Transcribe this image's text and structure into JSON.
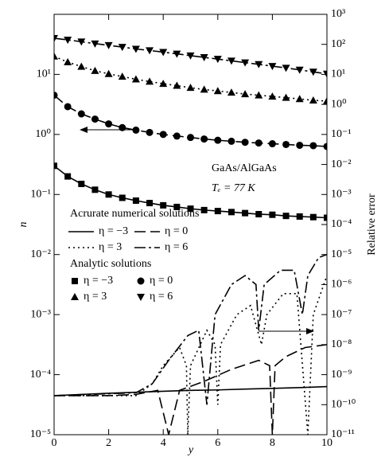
{
  "chart_data": {
    "type": "line",
    "xlabel": "y",
    "ylabel": "n",
    "y2label": "Relative error",
    "annotations": [
      "GaAs/AlGaAs",
      "Tₑ = 77 K"
    ],
    "legend_titles": [
      "Acrurate numerical solutions",
      "Analytic solutions"
    ],
    "xlim": [
      0,
      10
    ],
    "xticks": [
      0,
      2,
      4,
      6,
      8,
      10
    ],
    "log_y": true,
    "ylim": [
      1e-05,
      100
    ],
    "yticks": [
      {
        "value": 1e-05,
        "label": "10⁻⁵"
      },
      {
        "value": 0.0001,
        "label": "10⁻⁴"
      },
      {
        "value": 0.001,
        "label": "10⁻³"
      },
      {
        "value": 0.01,
        "label": "10⁻²"
      },
      {
        "value": 0.1,
        "label": "10⁻¹"
      },
      {
        "value": 1,
        "label": "10⁰"
      },
      {
        "value": 10,
        "label": "10¹"
      }
    ],
    "log_y2": true,
    "y2lim": [
      1e-11,
      1000
    ],
    "y2ticks": [
      {
        "value": 1e-11,
        "label": "10⁻¹¹"
      },
      {
        "value": 1e-10,
        "label": "10⁻¹⁰"
      },
      {
        "value": 1e-09,
        "label": "10⁻⁹"
      },
      {
        "value": 1e-08,
        "label": "10⁻⁸"
      },
      {
        "value": 1e-07,
        "label": "10⁻⁷"
      },
      {
        "value": 1e-06,
        "label": "10⁻⁶"
      },
      {
        "value": 1e-05,
        "label": "10⁻⁵"
      },
      {
        "value": 0.0001,
        "label": "10⁻⁴"
      },
      {
        "value": 0.001,
        "label": "10⁻³"
      },
      {
        "value": 0.01,
        "label": "10⁻²"
      },
      {
        "value": 0.1,
        "label": "10⁻¹"
      },
      {
        "value": 1,
        "label": "10⁰"
      },
      {
        "value": 10,
        "label": "10¹"
      },
      {
        "value": 100,
        "label": "10²"
      },
      {
        "value": 1000,
        "label": "10³"
      }
    ],
    "x": [
      0,
      0.5,
      1,
      1.5,
      2,
      2.5,
      3,
      3.5,
      4,
      4.5,
      5,
      5.5,
      6,
      6.5,
      7,
      7.5,
      8,
      8.5,
      9,
      9.5,
      10
    ],
    "series": [
      {
        "name": "η = −3",
        "kind": "line",
        "dash": "none",
        "color": "#000",
        "values": [
          0.3,
          0.2,
          0.15,
          0.12,
          0.1,
          0.088,
          0.079,
          0.072,
          0.066,
          0.062,
          0.058,
          0.055,
          0.053,
          0.051,
          0.049,
          0.047,
          0.046,
          0.044,
          0.043,
          0.042,
          0.041
        ]
      },
      {
        "name": "η = 0",
        "kind": "line",
        "dash": "14 6",
        "color": "#000",
        "values": [
          4.5,
          2.9,
          2.2,
          1.8,
          1.5,
          1.3,
          1.18,
          1.08,
          1.0,
          0.94,
          0.89,
          0.84,
          0.8,
          0.77,
          0.74,
          0.72,
          0.7,
          0.68,
          0.66,
          0.65,
          0.63
        ]
      },
      {
        "name": "η = 3",
        "kind": "line",
        "dash": "2 4",
        "color": "#000",
        "values": [
          20,
          16,
          13.5,
          11.5,
          10.2,
          9.2,
          8.3,
          7.6,
          7.0,
          6.5,
          6.0,
          5.6,
          5.3,
          5.0,
          4.7,
          4.5,
          4.3,
          4.1,
          3.9,
          3.7,
          3.6
        ]
      },
      {
        "name": "η = 6",
        "kind": "line",
        "dash": "14 4 3 4",
        "color": "#000",
        "values": [
          40,
          37.5,
          35,
          32.5,
          30.5,
          28.5,
          26.5,
          25,
          23.5,
          22,
          20.5,
          19.2,
          18,
          16.8,
          15.7,
          14.7,
          13.7,
          12.8,
          11.9,
          11,
          10.2
        ]
      },
      {
        "name": "η = −3",
        "kind": "marker",
        "marker": "square",
        "color": "#000",
        "values": [
          0.3,
          0.2,
          0.15,
          0.12,
          0.1,
          0.088,
          0.079,
          0.072,
          0.066,
          0.062,
          0.058,
          0.055,
          0.053,
          0.051,
          0.049,
          0.047,
          0.046,
          0.044,
          0.043,
          0.042,
          0.041
        ]
      },
      {
        "name": "η = 0",
        "kind": "marker",
        "marker": "circle",
        "color": "#000",
        "values": [
          4.5,
          2.9,
          2.2,
          1.8,
          1.5,
          1.3,
          1.18,
          1.08,
          1.0,
          0.94,
          0.89,
          0.84,
          0.8,
          0.77,
          0.74,
          0.72,
          0.7,
          0.68,
          0.66,
          0.65,
          0.63
        ]
      },
      {
        "name": "η = 3",
        "kind": "marker",
        "marker": "triangle-up",
        "color": "#000",
        "values": [
          20,
          16,
          13.5,
          11.5,
          10.2,
          9.2,
          8.3,
          7.6,
          7.0,
          6.5,
          6.0,
          5.6,
          5.3,
          5.0,
          4.7,
          4.5,
          4.3,
          4.1,
          3.9,
          3.7,
          3.6
        ]
      },
      {
        "name": "η = 6",
        "kind": "marker",
        "marker": "triangle-down",
        "color": "#000",
        "values": [
          40,
          37.5,
          35,
          32.5,
          30.5,
          28.5,
          26.5,
          25,
          23.5,
          22,
          20.5,
          19.2,
          18,
          16.8,
          15.7,
          14.7,
          13.7,
          12.8,
          11.9,
          11,
          10.2
        ]
      },
      {
        "kind": "line",
        "axis": "y2",
        "dash": "none",
        "color": "#000",
        "x": [
          0,
          1,
          2,
          3,
          4,
          5,
          6,
          7,
          8,
          9,
          10
        ],
        "values": [
          2e-10,
          2.2e-10,
          2.4e-10,
          2.6e-10,
          2.8e-10,
          3e-10,
          3.1e-10,
          3.3e-10,
          3.5e-10,
          3.7e-10,
          4e-10
        ]
      },
      {
        "kind": "line",
        "axis": "y2",
        "dash": "14 6",
        "color": "#000",
        "x": [
          0,
          2,
          3,
          3.8,
          4.2,
          4.6,
          5.5,
          6.5,
          7.5,
          7.9,
          8.0,
          8.1,
          8.5,
          9.2,
          10
        ],
        "values": [
          2e-10,
          2e-10,
          2.2e-10,
          3e-10,
          1e-11,
          3e-10,
          6e-10,
          1.5e-09,
          3e-09,
          2e-09,
          1e-11,
          2e-09,
          4e-09,
          8e-09,
          1e-08
        ]
      },
      {
        "kind": "line",
        "axis": "y2",
        "dash": "2 4",
        "color": "#000",
        "x": [
          0,
          3,
          3.6,
          4.0,
          4.6,
          4.85,
          4.9,
          5.0,
          5.6,
          5.9,
          6.0,
          6.1,
          6.7,
          7.2,
          7.6,
          7.8,
          8.4,
          8.9,
          9.3,
          9.5,
          10
        ],
        "values": [
          2e-10,
          2e-10,
          5e-10,
          2e-09,
          8e-09,
          2e-09,
          1e-11,
          2e-09,
          3e-08,
          1e-08,
          1e-10,
          1e-08,
          1e-07,
          2e-07,
          1e-08,
          1e-07,
          5e-07,
          5e-07,
          1e-11,
          1e-07,
          2e-06
        ]
      },
      {
        "kind": "line",
        "axis": "y2",
        "dash": "14 4 3 4",
        "color": "#000",
        "x": [
          0,
          3,
          3.6,
          4.2,
          4.9,
          5.3,
          5.6,
          5.9,
          6.5,
          7.0,
          7.4,
          7.5,
          7.7,
          8.3,
          8.8,
          9.1,
          9.3,
          9.7,
          10
        ],
        "values": [
          2e-10,
          2.5e-10,
          5e-10,
          3e-09,
          2e-08,
          3e-08,
          1e-10,
          1e-07,
          1e-06,
          2e-06,
          1e-06,
          3e-08,
          1e-06,
          3e-06,
          3e-06,
          1e-07,
          2e-06,
          8e-06,
          1e-05
        ]
      }
    ]
  }
}
